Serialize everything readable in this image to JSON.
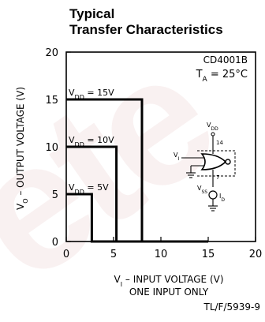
{
  "title_lines": [
    "Typical",
    "Transfer Characteristics"
  ],
  "figure_id": "TL/F/5939-9",
  "watermark_text": "ete",
  "chart_data": {
    "type": "line",
    "title": "Typical Transfer Characteristics",
    "xlabel": "V_I – INPUT VOLTAGE (V)",
    "xlabel_line2": "ONE INPUT ONLY",
    "ylabel": "V_O – OUTPUT VOLTAGE (V)",
    "xlim": [
      0,
      20
    ],
    "ylim": [
      0,
      20
    ],
    "xticks": [
      0,
      5,
      10,
      15,
      20
    ],
    "yticks": [
      0,
      5,
      10,
      15,
      20
    ],
    "grid": false,
    "annotation": {
      "device": "CD4001B",
      "temp": "T_A = 25°C"
    },
    "series": [
      {
        "name": "V_DD = 15V",
        "x": [
          0,
          8,
          8,
          15
        ],
        "y": [
          15,
          15,
          0,
          0
        ]
      },
      {
        "name": "V_DD = 10V",
        "x": [
          0,
          5.3,
          5.3,
          15
        ],
        "y": [
          10,
          10,
          0,
          0
        ]
      },
      {
        "name": "V_DD = 5V",
        "x": [
          0,
          2.7,
          2.7,
          15
        ],
        "y": [
          5,
          5,
          0,
          0
        ]
      }
    ],
    "schematic_labels": {
      "vdd": "V_DD",
      "pin14": "14",
      "vi": "V_I",
      "vss": "V_SS",
      "pin7": "7",
      "id": "I_D"
    }
  }
}
